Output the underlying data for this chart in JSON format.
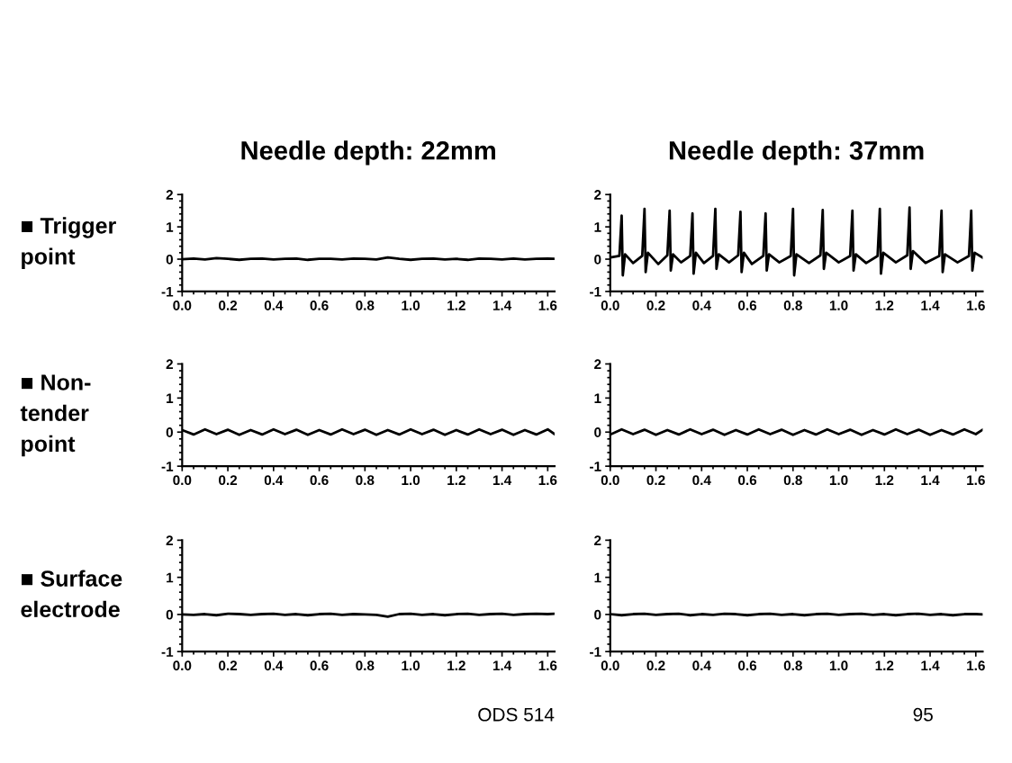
{
  "chart_data": [
    {
      "type": "line",
      "title": "Needle depth: 22mm",
      "ylabel": "■ Trigger\npoint",
      "xlim": [
        0,
        1.63
      ],
      "ylim": [
        -1,
        2
      ],
      "xticks": [
        {
          "value": 0,
          "label": "0.0"
        },
        {
          "value": 0.2,
          "label": "0.2"
        },
        {
          "value": 0.4,
          "label": "0.4"
        },
        {
          "value": 0.6,
          "label": "0.6"
        },
        {
          "value": 0.8,
          "label": "0.8"
        },
        {
          "value": 1.0,
          "label": "1.0"
        },
        {
          "value": 1.2,
          "label": "1.2"
        },
        {
          "value": 1.4,
          "label": "1.4"
        },
        {
          "value": 1.6,
          "label": "1.6"
        }
      ],
      "yticks": [
        -1,
        0,
        1,
        2
      ],
      "series": [
        {
          "color": "#000000",
          "x": [
            0,
            0.05,
            0.1,
            0.15,
            0.2,
            0.25,
            0.3,
            0.35,
            0.4,
            0.45,
            0.5,
            0.55,
            0.6,
            0.65,
            0.7,
            0.75,
            0.8,
            0.85,
            0.9,
            0.95,
            1.0,
            1.05,
            1.1,
            1.15,
            1.2,
            1.25,
            1.3,
            1.35,
            1.4,
            1.45,
            1.5,
            1.55,
            1.6,
            1.63
          ],
          "values": [
            0,
            0.02,
            -0.01,
            0.03,
            0.01,
            -0.02,
            0.01,
            0.02,
            -0.01,
            0.01,
            0.02,
            -0.02,
            0.01,
            0.01,
            -0.01,
            0.02,
            0.01,
            -0.01,
            0.05,
            0.01,
            -0.02,
            0.01,
            0.02,
            -0.01,
            0.01,
            -0.02,
            0.02,
            0.01,
            -0.01,
            0.02,
            -0.01,
            0.01,
            0.02,
            0.01
          ]
        }
      ]
    },
    {
      "type": "line",
      "title": "Needle depth: 37mm",
      "xlim": [
        0,
        1.63
      ],
      "ylim": [
        -1,
        2
      ],
      "xticks": [
        {
          "value": 0,
          "label": "0.0"
        },
        {
          "value": 0.2,
          "label": "0.2"
        },
        {
          "value": 0.4,
          "label": "0.4"
        },
        {
          "value": 0.6,
          "label": "0.6"
        },
        {
          "value": 0.8,
          "label": "0.8"
        },
        {
          "value": 1.0,
          "label": "1.0"
        },
        {
          "value": 1.2,
          "label": "1.2"
        },
        {
          "value": 1.4,
          "label": "1.4"
        },
        {
          "value": 1.6,
          "label": "1.6"
        }
      ],
      "yticks": [
        -1,
        0,
        1,
        2
      ],
      "series": [
        {
          "color": "#000000",
          "x": [
            0,
            0.04,
            0.05,
            0.055,
            0.065,
            0.1,
            0.14,
            0.15,
            0.155,
            0.165,
            0.21,
            0.25,
            0.26,
            0.265,
            0.275,
            0.31,
            0.35,
            0.36,
            0.365,
            0.375,
            0.41,
            0.45,
            0.46,
            0.465,
            0.475,
            0.52,
            0.56,
            0.57,
            0.575,
            0.585,
            0.62,
            0.67,
            0.68,
            0.685,
            0.695,
            0.74,
            0.79,
            0.8,
            0.805,
            0.815,
            0.87,
            0.92,
            0.93,
            0.935,
            0.945,
            1.0,
            1.05,
            1.06,
            1.065,
            1.075,
            1.12,
            1.17,
            1.18,
            1.185,
            1.195,
            1.25,
            1.3,
            1.31,
            1.315,
            1.325,
            1.38,
            1.44,
            1.45,
            1.455,
            1.465,
            1.52,
            1.57,
            1.58,
            1.585,
            1.595,
            1.63
          ],
          "values": [
            0.05,
            0.1,
            1.35,
            -0.5,
            0.15,
            -0.12,
            0.1,
            1.56,
            -0.4,
            0.2,
            -0.15,
            0.12,
            1.5,
            -0.35,
            0.15,
            -0.1,
            0.1,
            1.42,
            -0.45,
            0.2,
            -0.12,
            0.1,
            1.56,
            -0.3,
            0.15,
            -0.1,
            0.12,
            1.47,
            -0.4,
            0.2,
            -0.15,
            0.1,
            1.42,
            -0.35,
            0.15,
            -0.1,
            0.1,
            1.56,
            -0.5,
            0.15,
            -0.12,
            0.12,
            1.52,
            -0.3,
            0.2,
            -0.1,
            0.1,
            1.5,
            -0.35,
            0.15,
            -0.12,
            0.1,
            1.56,
            -0.45,
            0.2,
            -0.1,
            0.12,
            1.6,
            -0.3,
            0.25,
            -0.12,
            0.1,
            1.5,
            -0.4,
            0.15,
            -0.1,
            0.1,
            1.5,
            -0.35,
            0.2,
            0.05
          ]
        }
      ]
    },
    {
      "type": "line",
      "ylabel": "■ Non-\ntender\npoint",
      "xlim": [
        0,
        1.63
      ],
      "ylim": [
        -1,
        2
      ],
      "xticks": [
        {
          "value": 0,
          "label": "0.0"
        },
        {
          "value": 0.2,
          "label": "0.2"
        },
        {
          "value": 0.4,
          "label": "0.4"
        },
        {
          "value": 0.6,
          "label": "0.6"
        },
        {
          "value": 0.8,
          "label": "0.8"
        },
        {
          "value": 1.0,
          "label": "1.0"
        },
        {
          "value": 1.2,
          "label": "1.2"
        },
        {
          "value": 1.4,
          "label": "1.4"
        },
        {
          "value": 1.6,
          "label": "1.6"
        }
      ],
      "yticks": [
        -1,
        0,
        1,
        2
      ],
      "series": [
        {
          "color": "#000000",
          "x": [
            0,
            0.05,
            0.1,
            0.15,
            0.2,
            0.25,
            0.3,
            0.35,
            0.4,
            0.45,
            0.5,
            0.55,
            0.6,
            0.65,
            0.7,
            0.75,
            0.8,
            0.85,
            0.9,
            0.95,
            1.0,
            1.05,
            1.1,
            1.15,
            1.2,
            1.25,
            1.3,
            1.35,
            1.4,
            1.45,
            1.5,
            1.55,
            1.6,
            1.63
          ],
          "values": [
            0.06,
            -0.07,
            0.08,
            -0.06,
            0.07,
            -0.08,
            0.06,
            -0.07,
            0.08,
            -0.06,
            0.07,
            -0.08,
            0.06,
            -0.07,
            0.08,
            -0.06,
            0.07,
            -0.08,
            0.06,
            -0.07,
            0.08,
            -0.06,
            0.07,
            -0.08,
            0.06,
            -0.07,
            0.08,
            -0.06,
            0.07,
            -0.08,
            0.06,
            -0.07,
            0.08,
            -0.06
          ]
        }
      ]
    },
    {
      "type": "line",
      "xlim": [
        0,
        1.63
      ],
      "ylim": [
        -1,
        2
      ],
      "xticks": [
        {
          "value": 0,
          "label": "0.0"
        },
        {
          "value": 0.2,
          "label": "0.2"
        },
        {
          "value": 0.4,
          "label": "0.4"
        },
        {
          "value": 0.6,
          "label": "0.6"
        },
        {
          "value": 0.8,
          "label": "0.8"
        },
        {
          "value": 1.0,
          "label": "1.0"
        },
        {
          "value": 1.2,
          "label": "1.2"
        },
        {
          "value": 1.4,
          "label": "1.4"
        },
        {
          "value": 1.6,
          "label": "1.6"
        }
      ],
      "yticks": [
        -1,
        0,
        1,
        2
      ],
      "series": [
        {
          "color": "#000000",
          "x": [
            0,
            0.05,
            0.1,
            0.15,
            0.2,
            0.25,
            0.3,
            0.35,
            0.4,
            0.45,
            0.5,
            0.55,
            0.6,
            0.65,
            0.7,
            0.75,
            0.8,
            0.85,
            0.9,
            0.95,
            1.0,
            1.05,
            1.1,
            1.15,
            1.2,
            1.25,
            1.3,
            1.35,
            1.4,
            1.45,
            1.5,
            1.55,
            1.6,
            1.63
          ],
          "values": [
            -0.07,
            0.08,
            -0.06,
            0.07,
            -0.08,
            0.06,
            -0.07,
            0.08,
            -0.06,
            0.07,
            -0.08,
            0.06,
            -0.07,
            0.08,
            -0.06,
            0.07,
            -0.08,
            0.06,
            -0.07,
            0.08,
            -0.06,
            0.07,
            -0.08,
            0.06,
            -0.07,
            0.08,
            -0.06,
            0.07,
            -0.08,
            0.06,
            -0.07,
            0.08,
            -0.06,
            0.07
          ]
        }
      ]
    },
    {
      "type": "line",
      "ylabel": "■ Surface\nelectrode",
      "xlim": [
        0,
        1.63
      ],
      "ylim": [
        -1,
        2
      ],
      "annotations": [
        "ODS 514"
      ],
      "xticks": [
        {
          "value": 0,
          "label": "0.0"
        },
        {
          "value": 0.2,
          "label": "0.2"
        },
        {
          "value": 0.4,
          "label": "0.4"
        },
        {
          "value": 0.6,
          "label": "0.6"
        },
        {
          "value": 0.8,
          "label": "0.8"
        },
        {
          "value": 1.0,
          "label": "1.0"
        },
        {
          "value": 1.2,
          "label": "1.2"
        },
        {
          "value": 1.4,
          "label": "1.4"
        },
        {
          "value": 1.6,
          "label": "1.6"
        }
      ],
      "yticks": [
        -1,
        0,
        1,
        2
      ],
      "series": [
        {
          "color": "#000000",
          "x": [
            0,
            0.05,
            0.1,
            0.15,
            0.2,
            0.25,
            0.3,
            0.35,
            0.4,
            0.45,
            0.5,
            0.55,
            0.6,
            0.65,
            0.7,
            0.75,
            0.8,
            0.85,
            0.9,
            0.95,
            1.0,
            1.05,
            1.1,
            1.15,
            1.2,
            1.25,
            1.3,
            1.35,
            1.4,
            1.45,
            1.5,
            1.55,
            1.6,
            1.63
          ],
          "values": [
            0,
            -0.01,
            0.01,
            -0.02,
            0.02,
            0.01,
            -0.01,
            0.01,
            0.02,
            -0.01,
            0.01,
            -0.02,
            0.01,
            0.02,
            -0.01,
            0.01,
            0,
            -0.01,
            -0.06,
            0.01,
            0.02,
            -0.01,
            0.01,
            -0.02,
            0.01,
            0.02,
            -0.01,
            0.01,
            0.02,
            -0.01,
            0.01,
            0.02,
            0.01,
            0.02
          ]
        }
      ]
    },
    {
      "type": "line",
      "xlim": [
        0,
        1.63
      ],
      "ylim": [
        -1,
        2
      ],
      "annotations": [
        "95"
      ],
      "xticks": [
        {
          "value": 0,
          "label": "0.0"
        },
        {
          "value": 0.2,
          "label": "0.2"
        },
        {
          "value": 0.4,
          "label": "0.4"
        },
        {
          "value": 0.6,
          "label": "0.6"
        },
        {
          "value": 0.8,
          "label": "0.8"
        },
        {
          "value": 1.0,
          "label": "1.0"
        },
        {
          "value": 1.2,
          "label": "1.2"
        },
        {
          "value": 1.4,
          "label": "1.4"
        },
        {
          "value": 1.6,
          "label": "1.6"
        }
      ],
      "yticks": [
        -1,
        0,
        1,
        2
      ],
      "series": [
        {
          "color": "#000000",
          "x": [
            0,
            0.05,
            0.1,
            0.15,
            0.2,
            0.25,
            0.3,
            0.35,
            0.4,
            0.45,
            0.5,
            0.55,
            0.6,
            0.65,
            0.7,
            0.75,
            0.8,
            0.85,
            0.9,
            0.95,
            1.0,
            1.05,
            1.1,
            1.15,
            1.2,
            1.25,
            1.3,
            1.35,
            1.4,
            1.45,
            1.5,
            1.55,
            1.6,
            1.63
          ],
          "values": [
            0.01,
            -0.02,
            0.01,
            0.02,
            -0.01,
            0.01,
            0.02,
            -0.02,
            0.01,
            -0.01,
            0.02,
            0.01,
            -0.02,
            0.01,
            0.02,
            -0.01,
            0.01,
            -0.02,
            0.01,
            0.02,
            -0.01,
            0.01,
            0.02,
            -0.01,
            0.01,
            -0.02,
            0.01,
            0.02,
            -0.01,
            0.01,
            -0.02,
            0.01,
            0.01,
            0
          ]
        }
      ]
    }
  ]
}
